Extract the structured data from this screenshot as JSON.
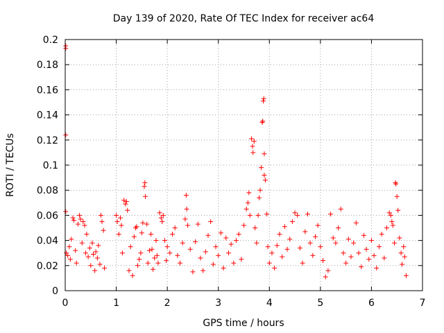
{
  "chart_data": {
    "type": "scatter",
    "title": "Day 139 of 2020, Rate Of TEC Index for receiver ac64",
    "xlabel": "GPS time / hours",
    "ylabel": "ROTI / TECUs",
    "xlim": [
      0,
      7
    ],
    "ylim": [
      0,
      0.2
    ],
    "xticks": [
      "0",
      "1",
      "2",
      "3",
      "4",
      "5",
      "6",
      "7"
    ],
    "yticks": [
      "0",
      "0.02",
      "0.04",
      "0.06",
      "0.08",
      "0.1",
      "0.12",
      "0.14",
      "0.16",
      "0.18",
      "0.2"
    ],
    "grid": true,
    "marker": "+",
    "series_color": "#ff0000",
    "series": [
      {
        "name": "ROTI",
        "points": [
          [
            0.01,
            0.195
          ],
          [
            0.01,
            0.193
          ],
          [
            0.01,
            0.124
          ],
          [
            0.01,
            0.063
          ],
          [
            0.02,
            0.03
          ],
          [
            0.05,
            0.028
          ],
          [
            0.08,
            0.035
          ],
          [
            0.1,
            0.025
          ],
          [
            0.12,
            0.041
          ],
          [
            0.15,
            0.058
          ],
          [
            0.17,
            0.056
          ],
          [
            0.2,
            0.032
          ],
          [
            0.22,
            0.022
          ],
          [
            0.25,
            0.053
          ],
          [
            0.28,
            0.06
          ],
          [
            0.3,
            0.057
          ],
          [
            0.33,
            0.038
          ],
          [
            0.35,
            0.055
          ],
          [
            0.38,
            0.052
          ],
          [
            0.4,
            0.03
          ],
          [
            0.42,
            0.045
          ],
          [
            0.45,
            0.027
          ],
          [
            0.48,
            0.034
          ],
          [
            0.5,
            0.02
          ],
          [
            0.53,
            0.038
          ],
          [
            0.55,
            0.029
          ],
          [
            0.58,
            0.016
          ],
          [
            0.6,
            0.031
          ],
          [
            0.63,
            0.026
          ],
          [
            0.65,
            0.036
          ],
          [
            0.68,
            0.021
          ],
          [
            0.7,
            0.06
          ],
          [
            0.72,
            0.055
          ],
          [
            0.75,
            0.048
          ],
          [
            0.77,
            0.018
          ],
          [
            1.0,
            0.06
          ],
          [
            1.02,
            0.055
          ],
          [
            1.05,
            0.045
          ],
          [
            1.08,
            0.058
          ],
          [
            1.1,
            0.052
          ],
          [
            1.12,
            0.03
          ],
          [
            1.15,
            0.072
          ],
          [
            1.18,
            0.069
          ],
          [
            1.2,
            0.071
          ],
          [
            1.22,
            0.064
          ],
          [
            1.25,
            0.016
          ],
          [
            1.28,
            0.035
          ],
          [
            1.32,
            0.012
          ],
          [
            1.35,
            0.043
          ],
          [
            1.38,
            0.05
          ],
          [
            1.4,
            0.051
          ],
          [
            1.42,
            0.02
          ],
          [
            1.45,
            0.025
          ],
          [
            1.48,
            0.03
          ],
          [
            1.5,
            0.046
          ],
          [
            1.52,
            0.054
          ],
          [
            1.55,
            0.083
          ],
          [
            1.56,
            0.086
          ],
          [
            1.57,
            0.075
          ],
          [
            1.6,
            0.053
          ],
          [
            1.62,
            0.022
          ],
          [
            1.65,
            0.032
          ],
          [
            1.68,
            0.045
          ],
          [
            1.7,
            0.033
          ],
          [
            1.72,
            0.017
          ],
          [
            1.75,
            0.026
          ],
          [
            1.78,
            0.04
          ],
          [
            1.8,
            0.028
          ],
          [
            1.82,
            0.022
          ],
          [
            1.85,
            0.062
          ],
          [
            1.88,
            0.058
          ],
          [
            1.9,
            0.055
          ],
          [
            1.92,
            0.06
          ],
          [
            1.95,
            0.04
          ],
          [
            1.98,
            0.024
          ],
          [
            2.0,
            0.035
          ],
          [
            2.05,
            0.03
          ],
          [
            2.1,
            0.045
          ],
          [
            2.15,
            0.05
          ],
          [
            2.2,
            0.028
          ],
          [
            2.25,
            0.022
          ],
          [
            2.3,
            0.038
          ],
          [
            2.35,
            0.057
          ],
          [
            2.37,
            0.076
          ],
          [
            2.38,
            0.065
          ],
          [
            2.4,
            0.052
          ],
          [
            2.45,
            0.033
          ],
          [
            2.5,
            0.015
          ],
          [
            2.55,
            0.039
          ],
          [
            2.6,
            0.053
          ],
          [
            2.65,
            0.026
          ],
          [
            2.7,
            0.016
          ],
          [
            2.75,
            0.031
          ],
          [
            2.8,
            0.044
          ],
          [
            2.85,
            0.055
          ],
          [
            2.9,
            0.021
          ],
          [
            2.95,
            0.035
          ],
          [
            3.0,
            0.028
          ],
          [
            3.05,
            0.046
          ],
          [
            3.1,
            0.018
          ],
          [
            3.15,
            0.042
          ],
          [
            3.2,
            0.03
          ],
          [
            3.25,
            0.037
          ],
          [
            3.3,
            0.022
          ],
          [
            3.35,
            0.04
          ],
          [
            3.4,
            0.045
          ],
          [
            3.45,
            0.025
          ],
          [
            3.5,
            0.052
          ],
          [
            3.55,
            0.065
          ],
          [
            3.58,
            0.07
          ],
          [
            3.6,
            0.078
          ],
          [
            3.62,
            0.06
          ],
          [
            3.65,
            0.121
          ],
          [
            3.67,
            0.115
          ],
          [
            3.68,
            0.11
          ],
          [
            3.7,
            0.119
          ],
          [
            3.72,
            0.05
          ],
          [
            3.75,
            0.038
          ],
          [
            3.78,
            0.06
          ],
          [
            3.8,
            0.074
          ],
          [
            3.82,
            0.08
          ],
          [
            3.84,
            0.098
          ],
          [
            3.86,
            0.134
          ],
          [
            3.87,
            0.135
          ],
          [
            3.88,
            0.151
          ],
          [
            3.89,
            0.153
          ],
          [
            3.9,
            0.109
          ],
          [
            3.9,
            0.092
          ],
          [
            3.92,
            0.088
          ],
          [
            3.95,
            0.061
          ],
          [
            3.97,
            0.035
          ],
          [
            4.0,
            0.022
          ],
          [
            4.05,
            0.03
          ],
          [
            4.1,
            0.018
          ],
          [
            4.15,
            0.036
          ],
          [
            4.2,
            0.045
          ],
          [
            4.25,
            0.027
          ],
          [
            4.3,
            0.051
          ],
          [
            4.35,
            0.033
          ],
          [
            4.4,
            0.041
          ],
          [
            4.45,
            0.055
          ],
          [
            4.5,
            0.062
          ],
          [
            4.55,
            0.06
          ],
          [
            4.6,
            0.034
          ],
          [
            4.65,
            0.022
          ],
          [
            4.7,
            0.047
          ],
          [
            4.75,
            0.061
          ],
          [
            4.8,
            0.038
          ],
          [
            4.85,
            0.028
          ],
          [
            4.9,
            0.043
          ],
          [
            4.95,
            0.052
          ],
          [
            5.0,
            0.035
          ],
          [
            5.05,
            0.024
          ],
          [
            5.1,
            0.011
          ],
          [
            5.15,
            0.016
          ],
          [
            5.2,
            0.061
          ],
          [
            5.25,
            0.042
          ],
          [
            5.3,
            0.038
          ],
          [
            5.35,
            0.05
          ],
          [
            5.4,
            0.065
          ],
          [
            5.45,
            0.03
          ],
          [
            5.5,
            0.022
          ],
          [
            5.55,
            0.041
          ],
          [
            5.6,
            0.027
          ],
          [
            5.65,
            0.038
          ],
          [
            5.7,
            0.054
          ],
          [
            5.75,
            0.03
          ],
          [
            5.8,
            0.019
          ],
          [
            5.85,
            0.044
          ],
          [
            5.9,
            0.033
          ],
          [
            5.95,
            0.025
          ],
          [
            6.0,
            0.04
          ],
          [
            6.05,
            0.028
          ],
          [
            6.1,
            0.018
          ],
          [
            6.15,
            0.035
          ],
          [
            6.2,
            0.045
          ],
          [
            6.25,
            0.026
          ],
          [
            6.3,
            0.05
          ],
          [
            6.35,
            0.062
          ],
          [
            6.38,
            0.06
          ],
          [
            6.4,
            0.055
          ],
          [
            6.42,
            0.052
          ],
          [
            6.45,
            0.038
          ],
          [
            6.47,
            0.086
          ],
          [
            6.48,
            0.085
          ],
          [
            6.5,
            0.075
          ],
          [
            6.52,
            0.064
          ],
          [
            6.55,
            0.042
          ],
          [
            6.58,
            0.03
          ],
          [
            6.6,
            0.021
          ],
          [
            6.63,
            0.035
          ],
          [
            6.65,
            0.027
          ],
          [
            6.68,
            0.012
          ]
        ]
      }
    ]
  }
}
